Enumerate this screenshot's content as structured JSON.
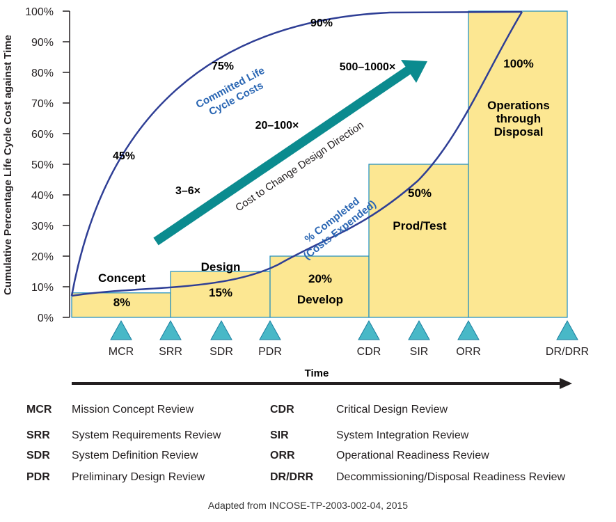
{
  "colors": {
    "bar_fill": "#fce792",
    "bar_stroke": "#1a8dc0",
    "curve": "#2e3e95",
    "curve_label": "#2a66b3",
    "arrow": "#0b8b8f",
    "milestone_fill": "#48b8c7",
    "milestone_stroke": "#1a7fa0",
    "axis": "#231f20"
  },
  "chart_data": {
    "type": "bar",
    "ylabel": "Cumulative Percentage Life Cycle Cost against Time",
    "xlabel": "Time",
    "ylim": [
      0,
      100
    ],
    "ytick_labels": [
      "0%",
      "10%",
      "20%",
      "30%",
      "40%",
      "50%",
      "60%",
      "70%",
      "80%",
      "90%",
      "100%"
    ],
    "phases": [
      {
        "name": "Concept",
        "value_label": "8%",
        "value": 8
      },
      {
        "name": "Design",
        "value_label": "15%",
        "value": 15
      },
      {
        "name": "Develop",
        "value_label": "20%",
        "value": 20
      },
      {
        "name": "Prod/Test",
        "value_label": "50%",
        "value": 50
      },
      {
        "name": "Operations through Disposal",
        "value_label": "100%",
        "value": 100
      }
    ],
    "milestones": [
      "MCR",
      "SRR",
      "SDR",
      "PDR",
      "CDR",
      "SIR",
      "ORR",
      "DR/DRR"
    ],
    "committed_curve": {
      "name": "Committed Life Cycle Costs",
      "points": [
        {
          "label": "45%",
          "value": 45
        },
        {
          "label": "75%",
          "value": 75
        },
        {
          "label": "90%",
          "value": 90
        }
      ]
    },
    "completed_curve": {
      "name": "% Completed (Costs Expended)"
    },
    "cost_arrow": {
      "label": "Cost to Change Design Direction",
      "multipliers": [
        "3–6×",
        "20–100×",
        "500–1000×"
      ]
    }
  },
  "legend": [
    {
      "abbr": "MCR",
      "desc": "Mission Concept Review"
    },
    {
      "abbr": "SRR",
      "desc": "System Requirements Review"
    },
    {
      "abbr": "SDR",
      "desc": "System Definition Review"
    },
    {
      "abbr": "PDR",
      "desc": "Preliminary Design Review"
    },
    {
      "abbr": "CDR",
      "desc": "Critical Design Review"
    },
    {
      "abbr": "SIR",
      "desc": "System Integration Review"
    },
    {
      "abbr": "ORR",
      "desc": "Operational Readiness Review"
    },
    {
      "abbr": "DR/DRR",
      "desc": "Decommissioning/Disposal Readiness Review"
    }
  ],
  "source": "Adapted from INCOSE-TP-2003-002-04, 2015"
}
